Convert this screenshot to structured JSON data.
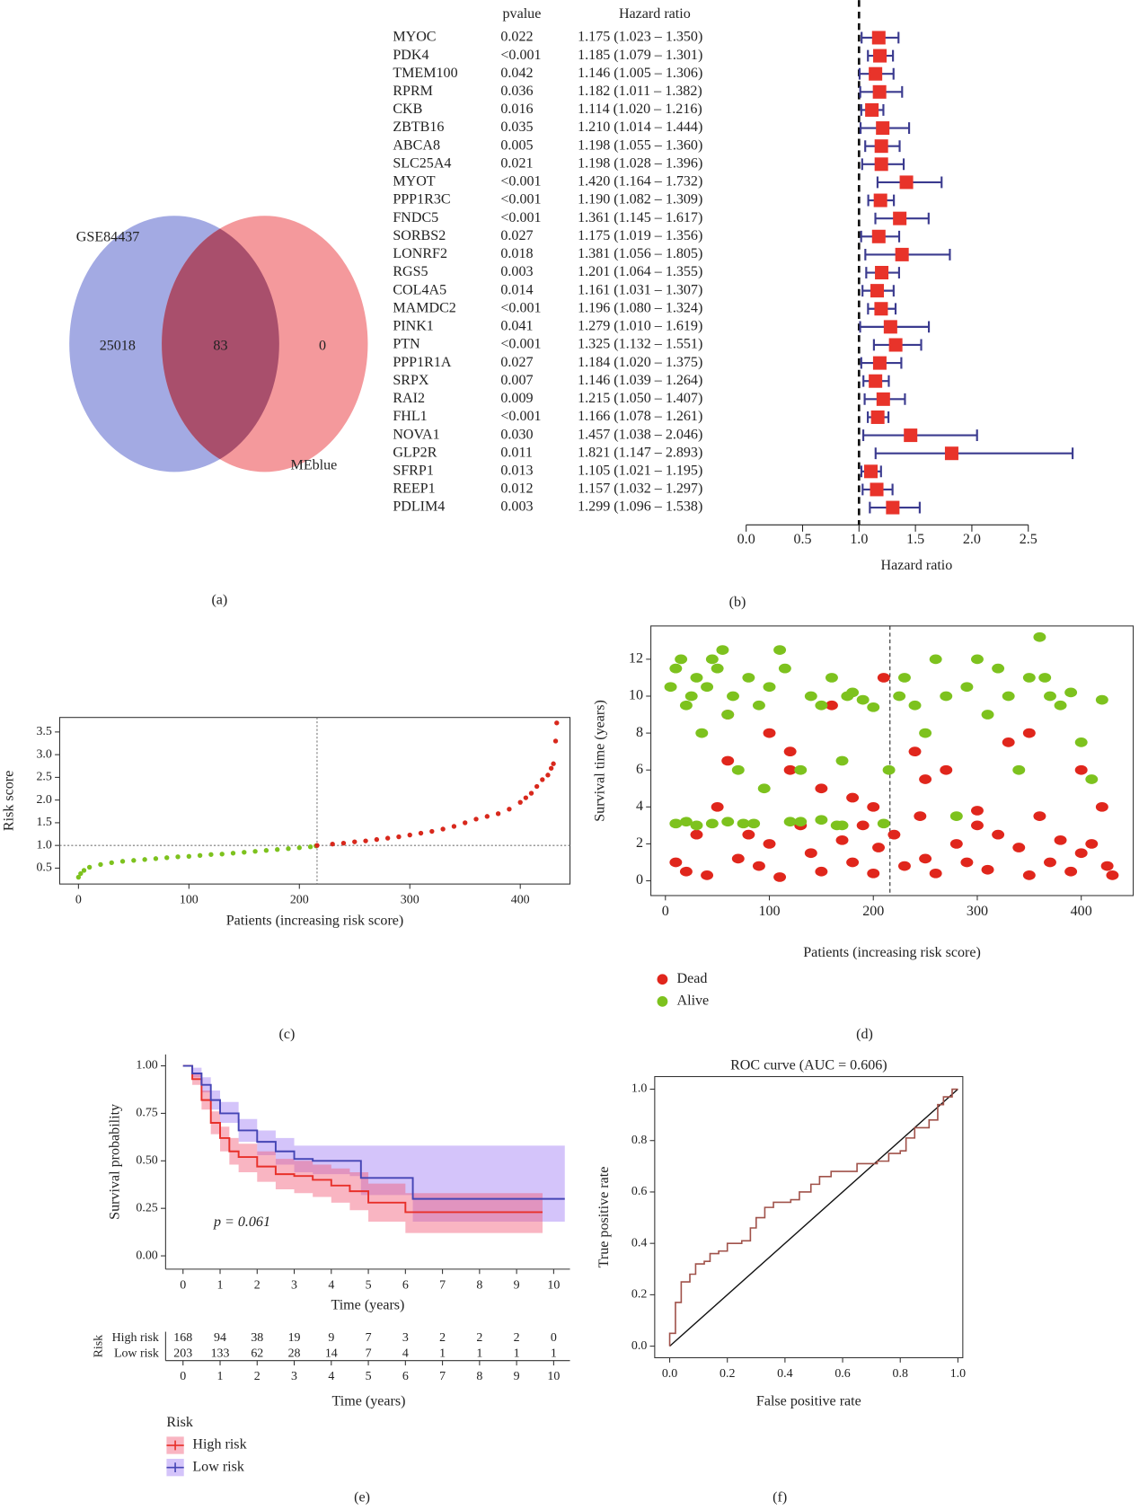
{
  "chart_data": [
    {
      "type": "venn",
      "label": "(a)",
      "sets": [
        {
          "name": "GSE84437",
          "color": "#a3aae3"
        },
        {
          "name": "MEblue",
          "color": "#f4999c"
        }
      ],
      "overlap_color": "#a94f6c",
      "values": [
        25018,
        83,
        0
      ]
    },
    {
      "type": "forest",
      "label": "(b)",
      "pvalue_header": "pvalue",
      "hr_header": "Hazard ratio",
      "xlabel": "Hazard ratio",
      "color": "#e8332a",
      "ci_color": "#3b3b8f",
      "reference_line": 1,
      "xlim": [
        0,
        2.5
      ],
      "xticks": [
        {
          "value": 0,
          "label": "0.0"
        },
        0.5,
        {
          "value": 1,
          "label": "1.0"
        },
        1.5,
        {
          "value": 2,
          "label": "2.0"
        },
        2.5
      ],
      "categories": [
        "MYOC",
        "PDK4",
        "TMEM100",
        "RPRM",
        "CKB",
        "ZBTB16",
        "ABCA8",
        "SLC25A4",
        "MYOT",
        "PPP1R3C",
        "FNDC5",
        "SORBS2",
        "LONRF2",
        "RGS5",
        "COL4A5",
        "MAMDC2",
        "PINK1",
        "PTN",
        "PPP1R1A",
        "SRPX",
        "RAI2",
        "FHL1",
        "NOVA1",
        "GLP2R",
        "SFRP1",
        "REEP1",
        "PDLIM4"
      ],
      "pvalues": [
        "0.022",
        "<0.001",
        "0.042",
        "0.036",
        "0.016",
        "0.035",
        "0.005",
        "0.021",
        "<0.001",
        "<0.001",
        "<0.001",
        "0.027",
        "0.018",
        "0.003",
        "0.014",
        "<0.001",
        "0.041",
        "<0.001",
        "0.027",
        "0.007",
        "0.009",
        "<0.001",
        "0.030",
        "0.011",
        "0.013",
        "0.012",
        "0.003"
      ],
      "values": [
        1.175,
        1.185,
        1.146,
        1.182,
        1.114,
        1.21,
        1.198,
        1.198,
        1.42,
        1.19,
        1.361,
        1.175,
        1.381,
        1.201,
        1.161,
        1.196,
        1.279,
        1.325,
        1.184,
        1.146,
        1.215,
        1.166,
        1.457,
        1.821,
        1.105,
        1.157,
        1.299
      ],
      "lower": [
        1.023,
        1.079,
        1.005,
        1.011,
        1.02,
        1.014,
        1.055,
        1.028,
        1.164,
        1.082,
        1.145,
        1.019,
        1.056,
        1.064,
        1.031,
        1.08,
        1.01,
        1.132,
        1.02,
        1.039,
        1.05,
        1.078,
        1.038,
        1.147,
        1.021,
        1.032,
        1.096
      ],
      "upper": [
        1.35,
        1.301,
        1.306,
        1.382,
        1.216,
        1.444,
        1.36,
        1.396,
        1.732,
        1.309,
        1.617,
        1.356,
        1.805,
        1.355,
        1.307,
        1.324,
        1.619,
        1.551,
        1.375,
        1.264,
        1.407,
        1.261,
        2.046,
        2.893,
        1.195,
        1.297,
        1.538
      ],
      "value_labels": [
        "1.175 (1.023 – 1.350)",
        "1.185 (1.079 – 1.301)",
        "1.146 (1.005 – 1.306)",
        "1.182 (1.011 – 1.382)",
        "1.114 (1.020 – 1.216)",
        "1.210 (1.014 – 1.444)",
        "1.198 (1.055 – 1.360)",
        "1.198 (1.028 – 1.396)",
        "1.420 (1.164 – 1.732)",
        "1.190 (1.082 – 1.309)",
        "1.361 (1.145 – 1.617)",
        "1.175 (1.019 – 1.356)",
        "1.381 (1.056 – 1.805)",
        "1.201 (1.064 – 1.355)",
        "1.161 (1.031 – 1.307)",
        "1.196 (1.080 – 1.324)",
        "1.279 (1.010 – 1.619)",
        "1.325 (1.132 – 1.551)",
        "1.184 (1.020 – 1.375)",
        "1.146 (1.039 – 1.264)",
        "1.215 (1.050 – 1.407)",
        "1.166 (1.078 – 1.261)",
        "1.457 (1.038 – 2.046)",
        "1.821 (1.147 – 2.893)",
        "1.105 (1.021 – 1.195)",
        "1.157 (1.032 – 1.297)",
        "1.299 (1.096 – 1.538)"
      ]
    },
    {
      "type": "scatter",
      "label": "(c)",
      "xlabel": "Patients (increasing risk score)",
      "ylabel": "Risk score",
      "xlim": [
        -17,
        445
      ],
      "ylim": [
        0.15,
        3.82
      ],
      "xticks": [
        0,
        100,
        200,
        300,
        400
      ],
      "yticks": [
        0.5,
        {
          "value": 1,
          "label": "1.0"
        },
        1.5,
        {
          "value": 2,
          "label": "2.0"
        },
        2.5,
        {
          "value": 3,
          "label": "3.0"
        },
        3.5
      ],
      "cutoff_x": 216,
      "cutoff_y": 1,
      "series": [
        {
          "color": "#7dc21e",
          "x": [
            0,
            2,
            5,
            10,
            20,
            30,
            40,
            50,
            60,
            70,
            80,
            90,
            100,
            110,
            120,
            130,
            140,
            150,
            160,
            170,
            180,
            190,
            200,
            210,
            215
          ],
          "values": [
            0.3,
            0.38,
            0.45,
            0.52,
            0.58,
            0.62,
            0.65,
            0.67,
            0.69,
            0.71,
            0.73,
            0.75,
            0.76,
            0.78,
            0.8,
            0.81,
            0.83,
            0.85,
            0.87,
            0.89,
            0.91,
            0.93,
            0.95,
            0.97,
            0.99
          ]
        },
        {
          "color": "#d8281c",
          "x": [
            216,
            230,
            240,
            250,
            260,
            270,
            280,
            290,
            300,
            310,
            320,
            330,
            340,
            350,
            360,
            370,
            380,
            390,
            400,
            405,
            410,
            415,
            420,
            425,
            428,
            430,
            432,
            433
          ],
          "values": [
            1,
            1.03,
            1.05,
            1.08,
            1.1,
            1.13,
            1.16,
            1.19,
            1.23,
            1.27,
            1.31,
            1.36,
            1.42,
            1.5,
            1.58,
            1.64,
            1.7,
            1.8,
            1.95,
            2.05,
            2.15,
            2.3,
            2.45,
            2.55,
            2.7,
            2.8,
            3.3,
            3.7
          ]
        }
      ]
    },
    {
      "type": "scatter",
      "label": "(d)",
      "xlabel": "Patients (increasing risk score)",
      "ylabel": "Survival time (years)",
      "xlim": [
        -14,
        450
      ],
      "ylim": [
        -0.8,
        13.8
      ],
      "xticks": [
        0,
        100,
        200,
        300,
        400
      ],
      "yticks": [
        0,
        2,
        4,
        6,
        8,
        10,
        12
      ],
      "cutoff_x": 216,
      "legend": "bottom-left",
      "series": [
        {
          "name": "Dead",
          "color": "#e0261c",
          "x": [
            10,
            20,
            30,
            40,
            50,
            60,
            70,
            80,
            90,
            100,
            110,
            120,
            130,
            140,
            150,
            160,
            170,
            180,
            190,
            200,
            205,
            210,
            220,
            230,
            240,
            245,
            250,
            260,
            270,
            280,
            290,
            300,
            310,
            320,
            330,
            340,
            350,
            360,
            370,
            380,
            390,
            400,
            410,
            420,
            425,
            430,
            100,
            150,
            200,
            250,
            300,
            350,
            400,
            60,
            120,
            180
          ],
          "values": [
            1,
            0.5,
            2.5,
            0.3,
            4,
            6.5,
            1.2,
            2.5,
            0.8,
            2,
            0.2,
            7,
            3,
            1.5,
            0.5,
            9.5,
            2.2,
            1,
            3,
            0.4,
            1.8,
            11,
            2.5,
            0.8,
            7,
            3.5,
            1.2,
            0.4,
            6,
            2,
            1,
            3.8,
            0.6,
            2.5,
            7.5,
            1.8,
            0.3,
            3.5,
            1,
            2.2,
            0.5,
            6,
            2,
            4,
            0.8,
            0.3,
            8,
            5,
            4,
            5.5,
            3,
            8,
            1.5,
            9,
            6,
            4.5
          ]
        },
        {
          "name": "Alive",
          "color": "#7dc21e",
          "x": [
            5,
            10,
            15,
            20,
            25,
            30,
            35,
            40,
            45,
            50,
            55,
            60,
            65,
            70,
            80,
            90,
            95,
            100,
            110,
            115,
            120,
            130,
            140,
            150,
            160,
            165,
            170,
            175,
            180,
            190,
            200,
            210,
            215,
            225,
            230,
            240,
            250,
            260,
            270,
            280,
            290,
            300,
            310,
            320,
            330,
            340,
            350,
            360,
            365,
            370,
            380,
            390,
            400,
            410,
            420,
            10,
            20,
            30,
            45,
            60,
            75,
            85,
            130,
            150,
            170
          ],
          "values": [
            10.5,
            11.5,
            12,
            9.5,
            10,
            11,
            8,
            10.5,
            12,
            11.5,
            12.5,
            9,
            10,
            6,
            11,
            9.5,
            5,
            10.5,
            12.5,
            11.5,
            3.2,
            6,
            10,
            9.5,
            11,
            3,
            6.5,
            10,
            10.2,
            9.8,
            9.4,
            3.1,
            6,
            10,
            11,
            9.5,
            8,
            12,
            10,
            3.5,
            10.5,
            12,
            9,
            11.5,
            10,
            6,
            11,
            13.2,
            11,
            10,
            9.5,
            10.2,
            7.5,
            5.5,
            9.8,
            3.1,
            3.2,
            3,
            3.1,
            3.2,
            3.1,
            3.1,
            3.2,
            3.3,
            3
          ]
        }
      ]
    },
    {
      "type": "survival",
      "label": "(e)",
      "xlabel": "Time (years)",
      "ylabel": "Survival probability",
      "annotation": "p = 0.061",
      "legend_title": "Risk",
      "legend": "bottom-left",
      "xlim": [
        -0.47,
        10.44
      ],
      "ylim": [
        -0.07,
        1.06
      ],
      "xticks": [
        0,
        1,
        2,
        3,
        4,
        5,
        6,
        7,
        8,
        9,
        10
      ],
      "yticks": [
        {
          "value": 0,
          "label": "0.00"
        },
        0.25,
        {
          "value": 0.5,
          "label": "0.50"
        },
        0.75,
        {
          "value": 1,
          "label": "1.00"
        }
      ],
      "series": [
        {
          "name": "High risk",
          "color": "#e8302a",
          "band_color": "#f25c78",
          "x": [
            0,
            0.25,
            0.5,
            0.75,
            1,
            1.25,
            1.5,
            2,
            2.5,
            3,
            3.5,
            4,
            4.5,
            5,
            6,
            9.7
          ],
          "values": [
            1,
            0.93,
            0.82,
            0.7,
            0.62,
            0.55,
            0.52,
            0.47,
            0.43,
            0.42,
            0.4,
            0.37,
            0.34,
            0.28,
            0.23,
            0.23
          ],
          "lower": [
            1,
            0.9,
            0.77,
            0.64,
            0.55,
            0.48,
            0.44,
            0.39,
            0.35,
            0.33,
            0.31,
            0.28,
            0.24,
            0.18,
            0.12,
            0.12
          ],
          "upper": [
            1,
            0.96,
            0.87,
            0.76,
            0.68,
            0.62,
            0.59,
            0.55,
            0.51,
            0.5,
            0.48,
            0.46,
            0.44,
            0.38,
            0.33,
            0.33
          ]
        },
        {
          "name": "Low risk",
          "color": "#4545b5",
          "band_color": "#9f7cf3",
          "x": [
            0,
            0.25,
            0.5,
            0.75,
            1,
            1.5,
            2,
            2.5,
            3,
            3.5,
            4,
            4.5,
            4.8,
            6.2,
            10.3
          ],
          "values": [
            1,
            0.96,
            0.9,
            0.82,
            0.75,
            0.66,
            0.6,
            0.55,
            0.51,
            0.5,
            0.5,
            0.5,
            0.41,
            0.3,
            0.3
          ],
          "lower": [
            1,
            0.94,
            0.86,
            0.77,
            0.7,
            0.6,
            0.53,
            0.48,
            0.44,
            0.43,
            0.43,
            0.42,
            0.32,
            0.18,
            0.18
          ],
          "upper": [
            1,
            0.99,
            0.94,
            0.87,
            0.81,
            0.72,
            0.66,
            0.62,
            0.58,
            0.58,
            0.58,
            0.58,
            0.58,
            0.58,
            0.58
          ]
        }
      ],
      "risk_table": {
        "title": "Risk",
        "xlabel": "Time (years)",
        "times": [
          0,
          1,
          2,
          3,
          4,
          5,
          6,
          7,
          8,
          9,
          10
        ],
        "counts": [
          [
            168,
            94,
            38,
            19,
            9,
            7,
            3,
            2,
            2,
            2,
            0
          ],
          [
            203,
            133,
            62,
            28,
            14,
            7,
            4,
            1,
            1,
            1,
            1
          ]
        ]
      }
    },
    {
      "type": "roc",
      "label": "(f)",
      "title": "ROC curve (AUC = 0.606)",
      "xlabel": "False positive rate",
      "ylabel": "True positive rate",
      "color": "#a0524a",
      "xlim": [
        -0.052,
        1.017
      ],
      "ylim": [
        -0.045,
        1.049
      ],
      "xticks": [
        {
          "value": 0,
          "label": "0.0"
        },
        0.2,
        0.4,
        0.6,
        0.8,
        {
          "value": 1,
          "label": "1.0"
        }
      ],
      "yticks": [
        {
          "value": 0,
          "label": "0.0"
        },
        0.2,
        0.4,
        0.6,
        0.8,
        {
          "value": 1,
          "label": "1.0"
        }
      ],
      "x": [
        0,
        0,
        0.02,
        0.02,
        0.04,
        0.04,
        0.07,
        0.09,
        0.12,
        0.14,
        0.17,
        0.2,
        0.25,
        0.28,
        0.3,
        0.33,
        0.36,
        0.42,
        0.45,
        0.49,
        0.52,
        0.56,
        0.62,
        0.65,
        0.72,
        0.76,
        0.8,
        0.82,
        0.85,
        0.9,
        0.93,
        0.95,
        0.98,
        1
      ],
      "values": [
        0,
        0.05,
        0.1,
        0.17,
        0.2,
        0.25,
        0.28,
        0.32,
        0.33,
        0.36,
        0.37,
        0.4,
        0.41,
        0.46,
        0.5,
        0.54,
        0.56,
        0.57,
        0.6,
        0.63,
        0.66,
        0.68,
        0.68,
        0.71,
        0.72,
        0.75,
        0.76,
        0.81,
        0.85,
        0.88,
        0.94,
        0.97,
        1,
        1
      ]
    }
  ]
}
